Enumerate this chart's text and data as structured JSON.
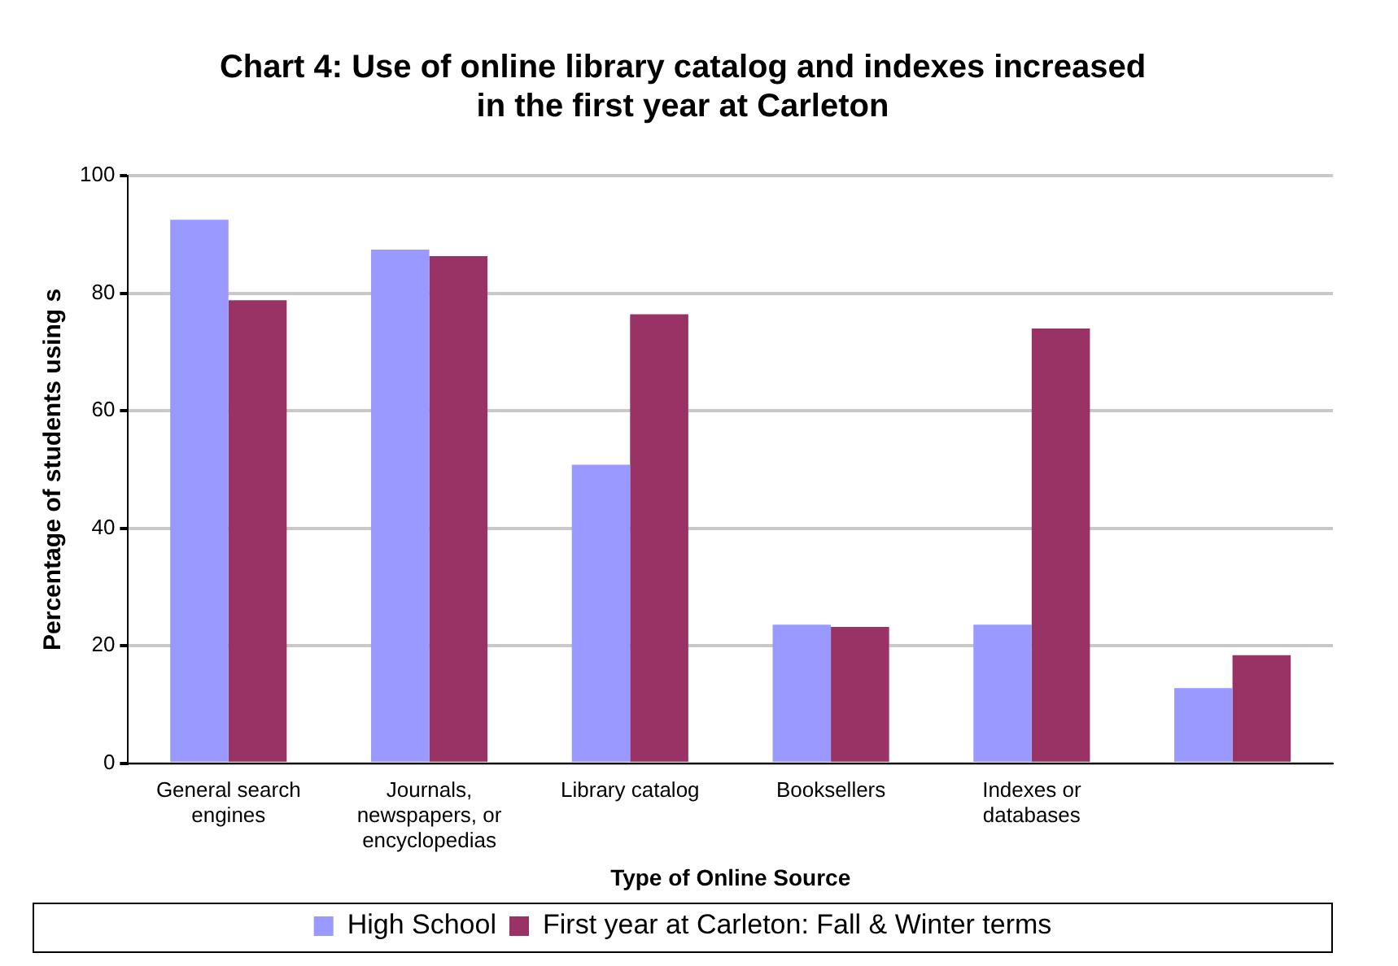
{
  "chart_data": {
    "type": "bar",
    "title": [
      "Chart 4: Use of online library catalog and indexes increased",
      "in the first year at Carleton"
    ],
    "xlabel": "Type of Online Source",
    "ylabel": "Percentage of students using s",
    "categories": [
      "General search engines",
      "Journals, newspapers, or encyclopedias",
      "Library catalog",
      "Booksellers",
      "Indexes or databases",
      null
    ],
    "series": [
      {
        "name": "High School",
        "color": "#9999ff",
        "values": [
          92.5,
          87.4,
          50.8,
          23.6,
          23.6,
          12.8
        ]
      },
      {
        "name": "First year at Carleton: Fall & Winter terms",
        "color": "#993366",
        "values": [
          78.8,
          86.3,
          76.4,
          23.2,
          74,
          18.4
        ]
      }
    ],
    "ylim": [
      0,
      100
    ],
    "yticks": [
      0,
      20,
      40,
      60,
      80,
      100
    ],
    "grid": "y",
    "legend": "bottom"
  }
}
